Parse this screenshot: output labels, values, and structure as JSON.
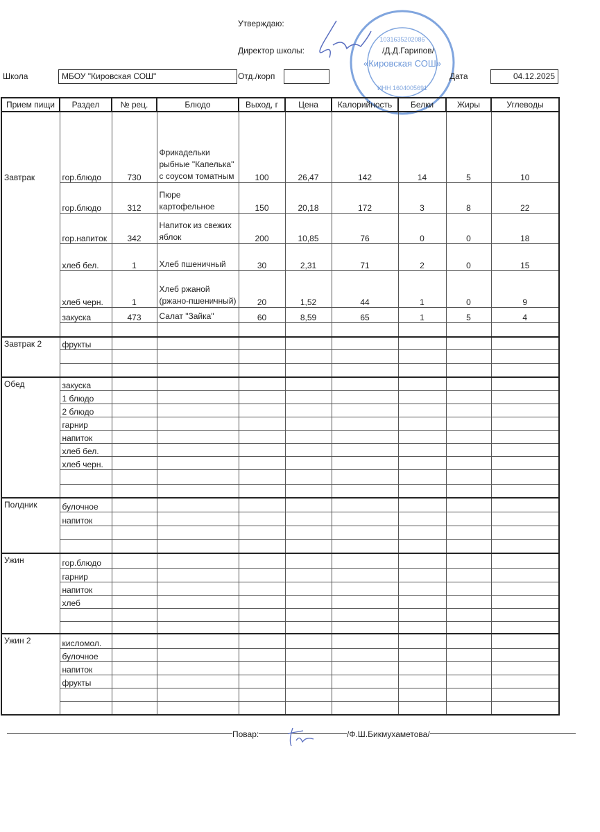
{
  "header": {
    "approve": "Утверждаю:",
    "director_label": "Директор школы:",
    "director_name": "/Д.Д.Гарипов/",
    "school_label": "Школа",
    "school_value": "МБОУ \"Кировская СОШ\"",
    "dept_label": "Отд./корп",
    "dept_value": "",
    "date_label": "Дата",
    "date_value": "04.12.2025"
  },
  "stamp": {
    "text": "«Кировская СОШ»",
    "inn": "ИНН 1604005691",
    "ogrn": "1031635202086"
  },
  "colors": {
    "stamp": "#4a7fd0",
    "ink": "#5a6fc0",
    "border": "#222222"
  },
  "columns": [
    "Прием пищи",
    "Раздел",
    "№ рец.",
    "Блюдо",
    "Выход, г",
    "Цена",
    "Калорийность",
    "Белки",
    "Жиры",
    "Углеводы"
  ],
  "meals": [
    {
      "name": "Завтрак",
      "rows": [
        [
          "гор.блюдо",
          "730",
          "Фрикадельки рыбные \"Капелька\" с соусом томатным",
          "100",
          "26,47",
          "142",
          "14",
          "5",
          "10"
        ],
        [
          "гор.блюдо",
          "312",
          "Пюре картофельное",
          "150",
          "20,18",
          "172",
          "3",
          "8",
          "22"
        ],
        [
          "гор.напиток",
          "342",
          "Напиток из свежих яблок",
          "200",
          "10,85",
          "76",
          "0",
          "0",
          "18"
        ],
        [
          "хлеб бел.",
          "1",
          "Хлеб пшеничный",
          "30",
          "2,31",
          "71",
          "2",
          "0",
          "15"
        ],
        [
          "хлеб черн.",
          "1",
          "Хлеб ржаной (ржано-пшеничный)",
          "20",
          "1,52",
          "44",
          "1",
          "0",
          "9"
        ],
        [
          "закуска",
          "473",
          "Салат \"Зайка\"",
          "60",
          "8,59",
          "65",
          "1",
          "5",
          "4"
        ],
        [
          "",
          "",
          "",
          "",
          "",
          "",
          "",
          "",
          ""
        ]
      ]
    },
    {
      "name": "Завтрак 2",
      "rows": [
        [
          "фрукты",
          "",
          "",
          "",
          "",
          "",
          "",
          "",
          ""
        ],
        [
          "",
          "",
          "",
          "",
          "",
          "",
          "",
          "",
          ""
        ],
        [
          "",
          "",
          "",
          "",
          "",
          "",
          "",
          "",
          ""
        ]
      ]
    },
    {
      "name": "Обед",
      "rows": [
        [
          "закуска",
          "",
          "",
          "",
          "",
          "",
          "",
          "",
          ""
        ],
        [
          "1 блюдо",
          "",
          "",
          "",
          "",
          "",
          "",
          "",
          ""
        ],
        [
          "2 блюдо",
          "",
          "",
          "",
          "",
          "",
          "",
          "",
          ""
        ],
        [
          "гарнир",
          "",
          "",
          "",
          "",
          "",
          "",
          "",
          ""
        ],
        [
          "напиток",
          "",
          "",
          "",
          "",
          "",
          "",
          "",
          ""
        ],
        [
          "хлеб бел.",
          "",
          "",
          "",
          "",
          "",
          "",
          "",
          ""
        ],
        [
          "хлеб черн.",
          "",
          "",
          "",
          "",
          "",
          "",
          "",
          ""
        ],
        [
          "",
          "",
          "",
          "",
          "",
          "",
          "",
          "",
          ""
        ],
        [
          "",
          "",
          "",
          "",
          "",
          "",
          "",
          "",
          ""
        ]
      ]
    },
    {
      "name": "Полдник",
      "rows": [
        [
          "булочное",
          "",
          "",
          "",
          "",
          "",
          "",
          "",
          ""
        ],
        [
          "напиток",
          "",
          "",
          "",
          "",
          "",
          "",
          "",
          ""
        ],
        [
          "",
          "",
          "",
          "",
          "",
          "",
          "",
          "",
          ""
        ],
        [
          "",
          "",
          "",
          "",
          "",
          "",
          "",
          "",
          ""
        ]
      ]
    },
    {
      "name": "Ужин",
      "rows": [
        [
          "гор.блюдо",
          "",
          "",
          "",
          "",
          "",
          "",
          "",
          ""
        ],
        [
          "гарнир",
          "",
          "",
          "",
          "",
          "",
          "",
          "",
          ""
        ],
        [
          "напиток",
          "",
          "",
          "",
          "",
          "",
          "",
          "",
          ""
        ],
        [
          "хлеб",
          "",
          "",
          "",
          "",
          "",
          "",
          "",
          ""
        ],
        [
          "",
          "",
          "",
          "",
          "",
          "",
          "",
          "",
          ""
        ],
        [
          "",
          "",
          "",
          "",
          "",
          "",
          "",
          "",
          ""
        ]
      ]
    },
    {
      "name": "Ужин 2",
      "rows": [
        [
          "кисломол.",
          "",
          "",
          "",
          "",
          "",
          "",
          "",
          ""
        ],
        [
          "булочное",
          "",
          "",
          "",
          "",
          "",
          "",
          "",
          ""
        ],
        [
          "напиток",
          "",
          "",
          "",
          "",
          "",
          "",
          "",
          ""
        ],
        [
          "фрукты",
          "",
          "",
          "",
          "",
          "",
          "",
          "",
          ""
        ],
        [
          "",
          "",
          "",
          "",
          "",
          "",
          "",
          "",
          ""
        ],
        [
          "",
          "",
          "",
          "",
          "",
          "",
          "",
          "",
          ""
        ]
      ]
    }
  ],
  "footer": {
    "cook_label": "Повар:",
    "cook_name": "/Ф.Ш.Бикмухаметова/"
  }
}
